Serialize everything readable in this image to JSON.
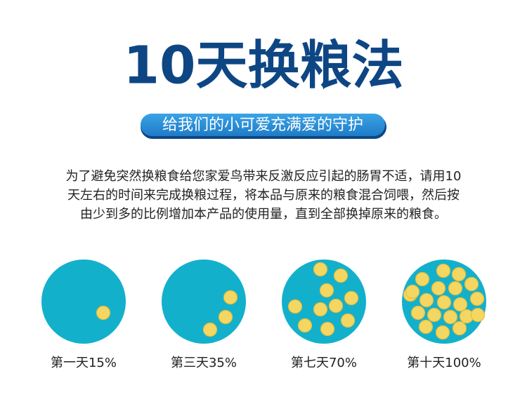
{
  "header": {
    "title": "10天换粮法",
    "subtitle": "给我们的小可爱充满爱的守护"
  },
  "paragraph": {
    "lines": [
      "为了避免突然换粮食给您家爱鸟带来反激反应引起的肠胃不适，请用10",
      "天左右的时间来完成换粮过程，将本品与原来的粮食混合饲喂，然后按",
      "由少到多的比例增加本产品的使用量，直到全部换掉原来的粮食。"
    ]
  },
  "stages": [
    {
      "label": "第一天15%"
    },
    {
      "label": "第三天35%"
    },
    {
      "label": "第七天70%"
    },
    {
      "label": "第十天100%"
    }
  ]
}
